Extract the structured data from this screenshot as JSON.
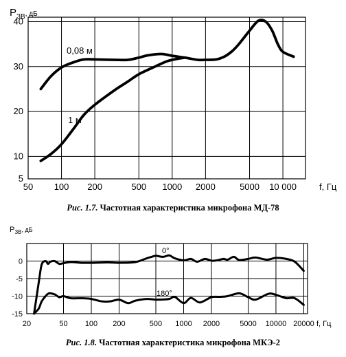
{
  "chart_data": [
    {
      "type": "line",
      "xscale": "log",
      "xlim": [
        50,
        16000
      ],
      "ylim": [
        5,
        41
      ],
      "x_ticks": [
        50,
        100,
        200,
        500,
        1000,
        2000,
        5000,
        10000
      ],
      "x_tick_labels": [
        "50",
        "100",
        "200",
        "500",
        "1000",
        "2000",
        "5000",
        "10 000"
      ],
      "y_ticks": [
        5,
        10,
        20,
        30,
        40
      ],
      "y_tick_labels": [
        "5",
        "10",
        "20",
        "30",
        "40"
      ],
      "ylabel_main": "P",
      "ylabel_sub": "ЗВ",
      "ylabel_unit": ", дБ",
      "xlabel": "f, Гц",
      "grid": true,
      "caption_prefix": "Рис. 1.7.",
      "caption_text": " Частотная характеристика микрофона МД-78",
      "series": [
        {
          "name": "0,08 м",
          "x": [
            65,
            80,
            100,
            130,
            160,
            200,
            300,
            400,
            500,
            600,
            800,
            1000,
            1300,
            1700,
            2000,
            2500,
            3000,
            3500,
            4000,
            5000,
            6000,
            7000,
            8000,
            9000,
            10000,
            12500
          ],
          "y": [
            25,
            27.8,
            29.8,
            31,
            31.6,
            31.6,
            31.5,
            31.5,
            32,
            32.5,
            32.8,
            32.4,
            32,
            31.5,
            31.5,
            31.6,
            32.3,
            33.5,
            35,
            38,
            40.2,
            40,
            38,
            35,
            33.3,
            32.2
          ]
        },
        {
          "name": "1 м",
          "x": [
            65,
            80,
            100,
            130,
            160,
            200,
            300,
            400,
            500,
            700,
            900,
            1100,
            1300
          ],
          "y": [
            9,
            10.5,
            12.7,
            16.3,
            19.3,
            21.5,
            24.7,
            26.7,
            28.3,
            30,
            31.2,
            31.7,
            32
          ]
        }
      ]
    },
    {
      "type": "line",
      "xscale": "log",
      "xlim": [
        20,
        22000
      ],
      "ylim": [
        -15,
        5
      ],
      "x_ticks": [
        20,
        50,
        100,
        200,
        500,
        1000,
        2000,
        5000,
        10000,
        20000
      ],
      "x_tick_labels": [
        "20",
        "50",
        "100",
        "200",
        "500",
        "1000",
        "2000",
        "5000",
        "10000",
        "20000"
      ],
      "y_ticks": [
        -15,
        -10,
        -5,
        0
      ],
      "y_tick_labels": [
        "-15",
        "-10",
        "-5",
        "0"
      ],
      "ylabel_main": "P",
      "ylabel_sub": "ЗВ",
      "ylabel_unit": ", дБ",
      "xlabel": "f, Гц",
      "grid": true,
      "caption_prefix": "Рис. 1.8.",
      "caption_text": " Частотная характеристика микрофона МКЭ-2",
      "series": [
        {
          "name": "0°",
          "x": [
            24,
            27,
            29,
            32,
            34,
            36,
            40,
            45,
            50,
            60,
            80,
            100,
            150,
            200,
            300,
            400,
            450,
            500,
            600,
            700,
            800,
            1000,
            1200,
            1400,
            1700,
            2000,
            2300,
            2700,
            3000,
            3500,
            4000,
            5000,
            6000,
            8000,
            10000,
            13000,
            16000,
            20000
          ],
          "y": [
            -15,
            -6,
            -1,
            0,
            -0.8,
            -0.2,
            0,
            -0.8,
            -0.6,
            -0.3,
            -0.5,
            -0.5,
            -0.4,
            -0.5,
            -0.3,
            0.8,
            1.2,
            1.5,
            1.2,
            1.6,
            0.8,
            0.2,
            0.6,
            -0.2,
            0.6,
            0.1,
            0.2,
            0.6,
            0.4,
            1.2,
            0.3,
            0.6,
            1,
            0.4,
            0.9,
            0.6,
            -0.2,
            -2.8
          ]
        },
        {
          "name": "180°",
          "x": [
            24,
            27,
            29,
            32,
            35,
            40,
            45,
            50,
            60,
            80,
            100,
            130,
            160,
            200,
            250,
            300,
            400,
            500,
            700,
            800,
            1000,
            1200,
            1500,
            2000,
            2500,
            3000,
            4000,
            5000,
            6000,
            8000,
            9000,
            11000,
            13000,
            16000,
            20000
          ],
          "y": [
            -15,
            -13.5,
            -11.5,
            -10,
            -9.2,
            -9.5,
            -10.3,
            -10,
            -10.6,
            -10.6,
            -10.8,
            -11.5,
            -11.5,
            -11,
            -12,
            -11.3,
            -10.8,
            -11,
            -10.8,
            -10.2,
            -12,
            -10.5,
            -11.8,
            -10.3,
            -10.2,
            -10,
            -9.2,
            -10.3,
            -11,
            -9.5,
            -9.3,
            -10,
            -10.6,
            -10.6,
            -12.5
          ]
        }
      ]
    }
  ]
}
